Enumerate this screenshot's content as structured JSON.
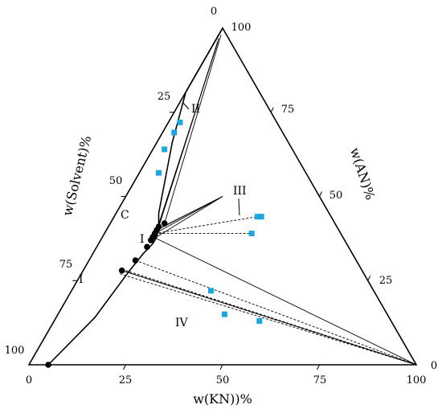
{
  "chart_data": {
    "type": "scatter",
    "subtype": "ternary-phase-diagram",
    "axes": {
      "bottom": {
        "title": "w(KN))%",
        "ticks": [
          "0",
          "25",
          "50",
          "75",
          "100"
        ]
      },
      "left": {
        "title": "w(Solvent)%",
        "ticks": [
          "0",
          "25",
          "50",
          "75",
          "100"
        ]
      },
      "right": {
        "title": "w(AN)%",
        "ticks": [
          "0",
          "25",
          "50",
          "75",
          "100"
        ]
      }
    },
    "region_labels": [
      "II",
      "III",
      "I",
      "IV",
      "I"
    ],
    "point_label": "C",
    "colors": {
      "frame": "#000000",
      "solubility": "#000000",
      "feed": "#1aa7e0"
    },
    "vertices": {
      "solvent": {
        "kn": 0,
        "an": 0
      },
      "an": {
        "kn": 0,
        "an": 100
      },
      "kn": {
        "kn": 100,
        "an": 0
      }
    },
    "solubility_curve": [
      {
        "kn": 5,
        "an": 0
      },
      {
        "kn": 10,
        "an": 14
      },
      {
        "kn": 12,
        "an": 28
      },
      {
        "kn": 13,
        "an": 33
      },
      {
        "kn": 14,
        "an": 36
      },
      {
        "kn": 14,
        "an": 38
      },
      {
        "kn": 13,
        "an": 41
      },
      {
        "kn": 11,
        "an": 45
      },
      {
        "kn": 4,
        "an": 66
      },
      {
        "kn": 0,
        "an": 81
      },
      {
        "kn": 0,
        "an": 100
      }
    ],
    "solubility_points": [
      {
        "kn": 5,
        "an": 0
      },
      {
        "kn": 10,
        "an": 28
      },
      {
        "kn": 12,
        "an": 31
      },
      {
        "kn": 13,
        "an": 35
      },
      {
        "kn": 13,
        "an": 37
      },
      {
        "kn": 13,
        "an": 38
      },
      {
        "kn": 13,
        "an": 39
      },
      {
        "kn": 13,
        "an": 40
      },
      {
        "kn": 13,
        "an": 41
      },
      {
        "kn": 14,
        "an": 42
      }
    ],
    "tie_lines": [
      {
        "from": {
          "kn": 0.5,
          "an": 97
        },
        "to": {
          "kn": 13,
          "an": 41
        }
      },
      {
        "from": {
          "kn": 0.8,
          "an": 96
        },
        "to": {
          "kn": 13,
          "an": 40
        }
      },
      {
        "from": {
          "kn": 1,
          "an": 95
        },
        "to": {
          "kn": 13,
          "an": 41
        }
      },
      {
        "from": {
          "kn": 0.6,
          "an": 98
        },
        "to": {
          "kn": 14,
          "an": 42
        }
      },
      {
        "from": {
          "kn": 25,
          "an": 50
        },
        "to": {
          "kn": 14,
          "an": 41
        }
      },
      {
        "from": {
          "kn": 25,
          "an": 50
        },
        "to": {
          "kn": 13,
          "an": 40
        }
      },
      {
        "from": {
          "kn": 25,
          "an": 50
        },
        "to": {
          "kn": 13,
          "an": 39
        }
      },
      {
        "from": {
          "kn": 25,
          "an": 50
        },
        "to": {
          "kn": 14,
          "an": 38
        }
      },
      {
        "from": {
          "kn": 100,
          "an": 0
        },
        "to": {
          "kn": 13,
          "an": 38
        }
      },
      {
        "from": {
          "kn": 100,
          "an": 0
        },
        "to": {
          "kn": 10,
          "an": 28
        }
      }
    ],
    "dashed_lines": [
      {
        "from": {
          "kn": 13,
          "an": 39
        },
        "to": {
          "kn": 37,
          "an": 44
        }
      },
      {
        "from": {
          "kn": 13,
          "an": 39
        },
        "to": {
          "kn": 38,
          "an": 39
        }
      },
      {
        "from": {
          "kn": 12,
          "an": 31
        },
        "to": {
          "kn": 100,
          "an": 0
        }
      },
      {
        "from": {
          "kn": 10,
          "an": 28
        },
        "to": {
          "kn": 100,
          "an": 0
        }
      },
      {
        "from": {
          "kn": 10,
          "an": 27
        },
        "to": {
          "kn": 100,
          "an": 0
        }
      },
      {
        "from": {
          "kn": 11,
          "an": 28
        },
        "to": {
          "kn": 100,
          "an": 0
        }
      }
    ],
    "feed_points": [
      {
        "kn": 3,
        "an": 72
      },
      {
        "kn": 3,
        "an": 69
      },
      {
        "kn": 3,
        "an": 64
      },
      {
        "kn": 5,
        "an": 57
      },
      {
        "kn": 37,
        "an": 44
      },
      {
        "kn": 38,
        "an": 44
      },
      {
        "kn": 38,
        "an": 39
      },
      {
        "kn": 36,
        "an": 22
      },
      {
        "kn": 43,
        "an": 15
      },
      {
        "kn": 53,
        "an": 13
      }
    ]
  }
}
